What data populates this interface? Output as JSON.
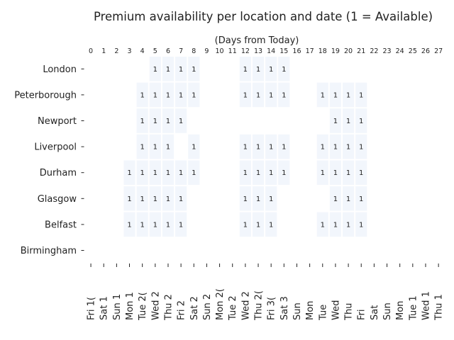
{
  "chart_data": {
    "type": "heatmap",
    "title": "Premium availability per location and date (1 = Available)",
    "top_axis_label": "(Days from Today)",
    "top_ticks": [
      "0",
      "1",
      "2",
      "3",
      "4",
      "5",
      "6",
      "7",
      "8",
      "9",
      "10",
      "11",
      "12",
      "13",
      "14",
      "15",
      "16",
      "17",
      "18",
      "19",
      "20",
      "21",
      "22",
      "23",
      "24",
      "25",
      "26",
      "27"
    ],
    "bottom_ticks": [
      "Fri 1(",
      "Sat 1",
      "Sun 1",
      "Mon 1",
      "Tue 2(",
      "Wed 2",
      "Thu 2",
      "Fri 2",
      "Sat 2",
      "Sun 2",
      "Mon 2(",
      "Tue 2",
      "Wed 2",
      "Thu 2(",
      "Fri 3(",
      "Sat 3",
      "Sun",
      "Mon",
      "Tue",
      "Wed",
      "Thu",
      "Fri",
      "Sat",
      "Sun",
      "Mon",
      "Tue 1",
      "Wed 1",
      "Thu 1"
    ],
    "rows": [
      "London",
      "Peterborough",
      "Newport",
      "Liverpool",
      "Durham",
      "Glasgow",
      "Belfast",
      "Birmingham"
    ],
    "values": [
      [
        null,
        null,
        null,
        null,
        null,
        1,
        1,
        1,
        1,
        null,
        null,
        null,
        1,
        1,
        1,
        1,
        null,
        null,
        null,
        null,
        null,
        null,
        null,
        null,
        null,
        null,
        null,
        null
      ],
      [
        null,
        null,
        null,
        null,
        1,
        1,
        1,
        1,
        1,
        null,
        null,
        null,
        1,
        1,
        1,
        1,
        null,
        null,
        1,
        1,
        1,
        1,
        null,
        null,
        null,
        null,
        null,
        null
      ],
      [
        null,
        null,
        null,
        null,
        1,
        1,
        1,
        1,
        null,
        null,
        null,
        null,
        null,
        null,
        null,
        null,
        null,
        null,
        null,
        1,
        1,
        1,
        null,
        null,
        null,
        null,
        null,
        null
      ],
      [
        null,
        null,
        null,
        null,
        1,
        1,
        1,
        null,
        1,
        null,
        null,
        null,
        1,
        1,
        1,
        1,
        null,
        null,
        1,
        1,
        1,
        1,
        null,
        null,
        null,
        null,
        null,
        null
      ],
      [
        null,
        null,
        null,
        1,
        1,
        1,
        1,
        1,
        1,
        null,
        null,
        null,
        1,
        1,
        1,
        1,
        null,
        null,
        1,
        1,
        1,
        1,
        null,
        null,
        null,
        null,
        null,
        null
      ],
      [
        null,
        null,
        null,
        1,
        1,
        1,
        1,
        1,
        null,
        null,
        null,
        null,
        1,
        1,
        1,
        null,
        null,
        null,
        null,
        1,
        1,
        1,
        null,
        null,
        null,
        null,
        null,
        null
      ],
      [
        null,
        null,
        null,
        1,
        1,
        1,
        1,
        1,
        null,
        null,
        null,
        null,
        1,
        1,
        1,
        null,
        null,
        null,
        1,
        1,
        1,
        1,
        null,
        null,
        null,
        null,
        null,
        null
      ],
      [
        null,
        null,
        null,
        null,
        null,
        null,
        null,
        null,
        null,
        null,
        null,
        null,
        null,
        null,
        null,
        null,
        null,
        null,
        null,
        null,
        null,
        null,
        null,
        null,
        null,
        null,
        null,
        null
      ]
    ],
    "cell_color": "#f2f6fc",
    "grid": false
  }
}
